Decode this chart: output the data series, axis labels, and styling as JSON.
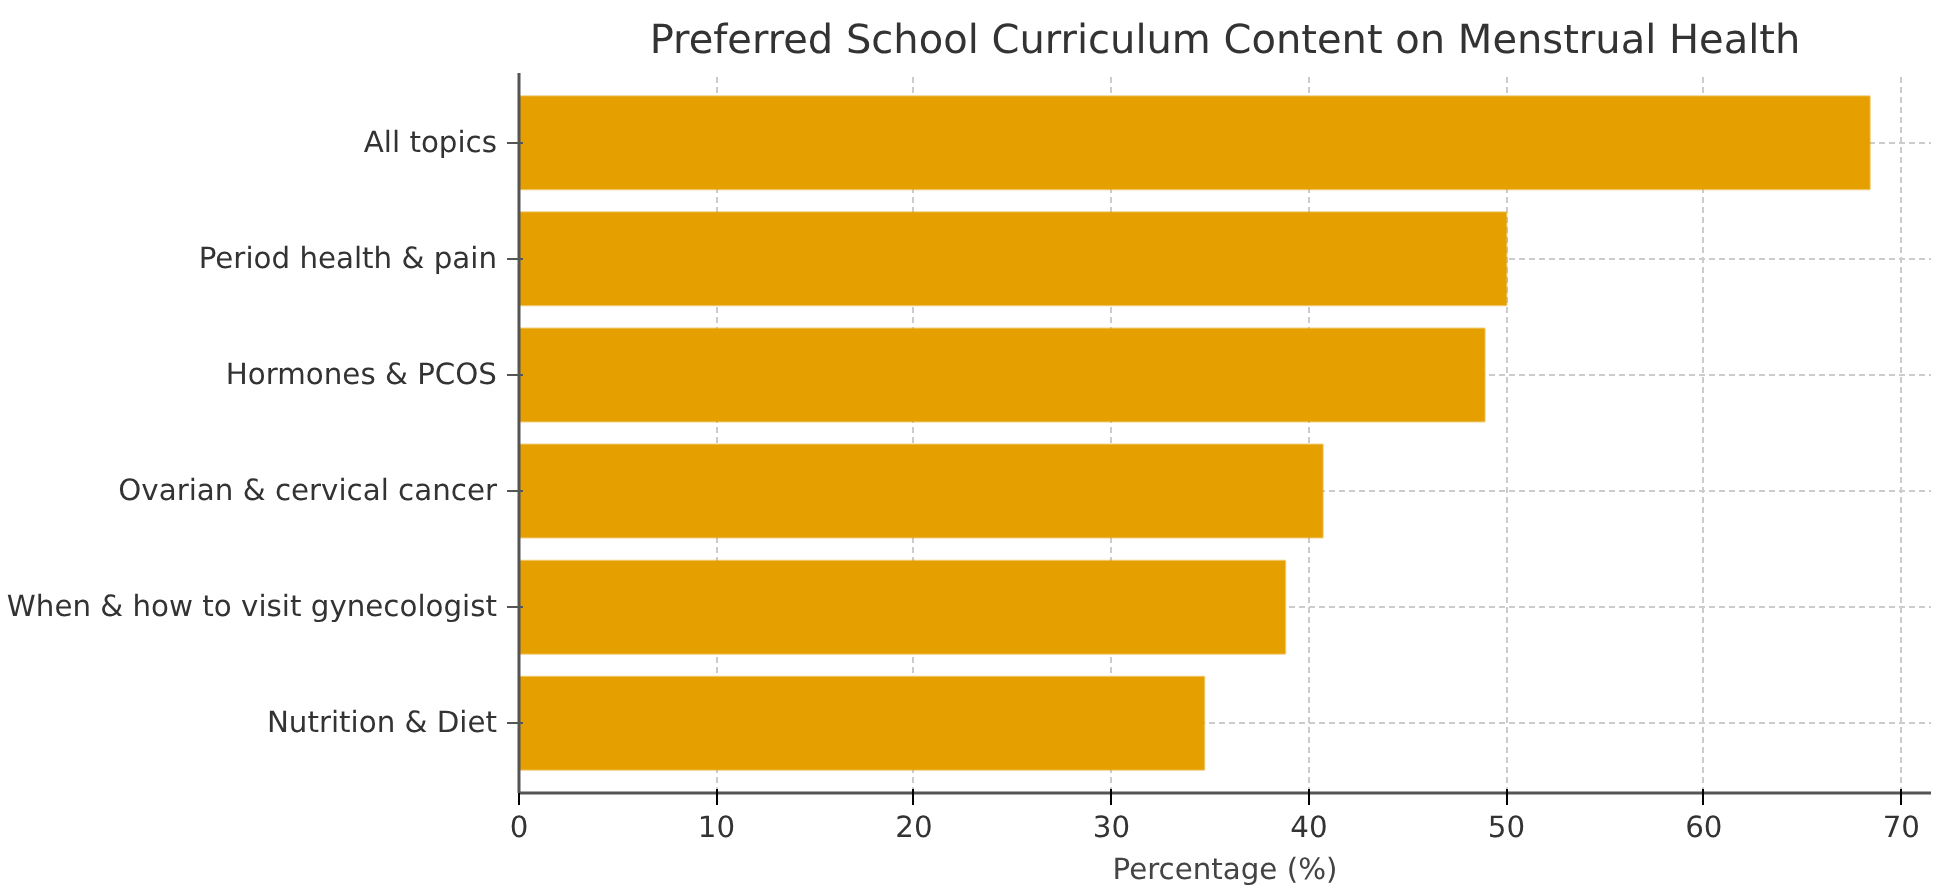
{
  "chart_data": {
    "type": "bar",
    "orientation": "horizontal",
    "title": "Preferred School Curriculum Content on Menstrual Health",
    "xlabel": "Percentage (%)",
    "categories": [
      "All topics",
      "Period health & pain",
      "Hormones & PCOS",
      "Ovarian & cervical cancer",
      "When & how to visit gynecologist",
      "Nutrition & Diet"
    ],
    "values": [
      68.4,
      50.0,
      48.9,
      40.7,
      38.8,
      34.7
    ],
    "color": "#e5a000",
    "xlim": [
      0,
      71.5
    ],
    "xticks": [
      0,
      10,
      20,
      30,
      40,
      50,
      60,
      70
    ],
    "grid": true
  }
}
